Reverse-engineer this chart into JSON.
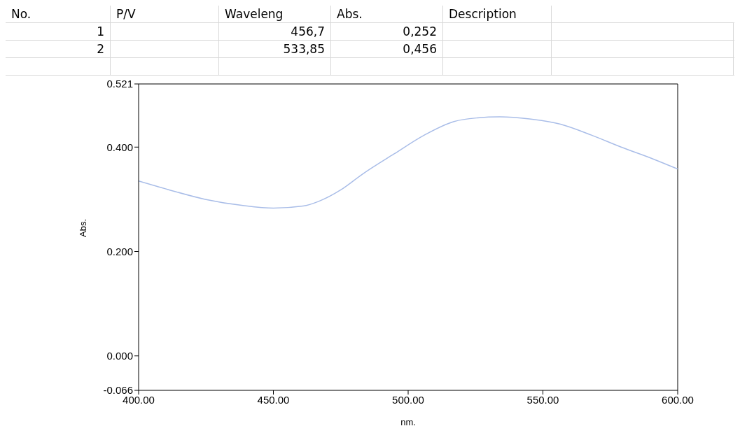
{
  "chart_data": {
    "type": "line",
    "xlabel": "nm.",
    "ylabel": "Abs.",
    "annotations": [
      "No.",
      "P/V",
      "Waveleng",
      "Abs.",
      "Description",
      "1",
      "456,7",
      "0,252",
      "2",
      "533,85",
      "0,456"
    ],
    "x": [
      400,
      410.7,
      424.7,
      438.7,
      450,
      461,
      466.8,
      475,
      483,
      494.8,
      506,
      517,
      525.7,
      534,
      545,
      556.5,
      568,
      579,
      591,
      600
    ],
    "series": [
      {
        "color": "#a9bde8",
        "values": [
          0.335,
          0.319,
          0.3,
          0.288,
          0.283,
          0.287,
          0.296,
          0.318,
          0.348,
          0.387,
          0.423,
          0.449,
          0.456,
          0.458,
          0.454,
          0.444,
          0.423,
          0.4,
          0.377,
          0.358
        ]
      }
    ],
    "xlim": [
      400,
      600
    ],
    "xticks": [
      {
        "value": 400,
        "label": "400.00"
      },
      {
        "value": 450,
        "label": "450.00"
      },
      {
        "value": 500,
        "label": "500.00"
      },
      {
        "value": 550,
        "label": "550.00"
      },
      {
        "value": 600,
        "label": "600.00"
      }
    ],
    "ylim": [
      -0.066,
      0.521
    ],
    "yticks": [
      {
        "value": -0.066,
        "label": "-0.066"
      },
      {
        "value": 0,
        "label": "0.000"
      },
      {
        "value": 0.2,
        "label": "0.200"
      },
      {
        "value": 0.4,
        "label": "0.400"
      },
      {
        "value": 0.521,
        "label": "0.521"
      }
    ],
    "grid": false,
    "legend": false,
    "marker": "none",
    "line_style": "solid"
  }
}
